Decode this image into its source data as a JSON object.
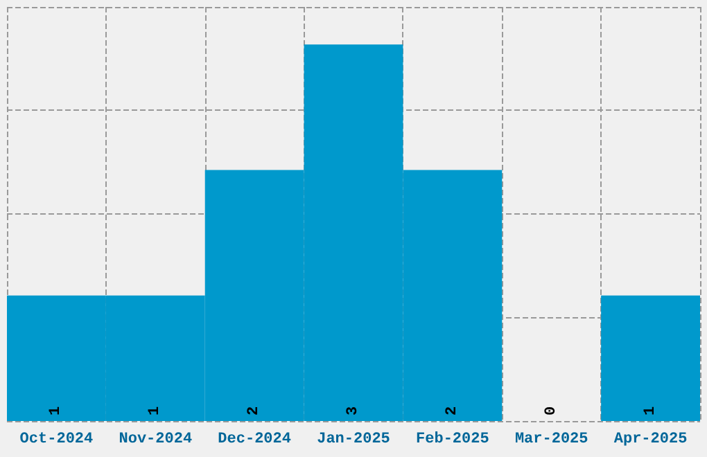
{
  "chart_data": {
    "type": "bar",
    "categories": [
      "Oct-2024",
      "Nov-2024",
      "Dec-2024",
      "Jan-2025",
      "Feb-2025",
      "Mar-2025",
      "Apr-2025"
    ],
    "values": [
      1,
      1,
      2,
      3,
      2,
      0,
      1
    ],
    "color": "#0099cc",
    "data_labels": true,
    "grid": true,
    "tick_labels": "x",
    "ylim": [
      0,
      3.3
    ],
    "yticks": [
      {
        "value": 0,
        "label": null
      },
      {
        "value": 0.825,
        "label": null
      },
      {
        "value": 1.65,
        "label": null
      },
      {
        "value": 2.475,
        "label": null
      },
      {
        "value": 3.3,
        "label": null
      }
    ]
  }
}
